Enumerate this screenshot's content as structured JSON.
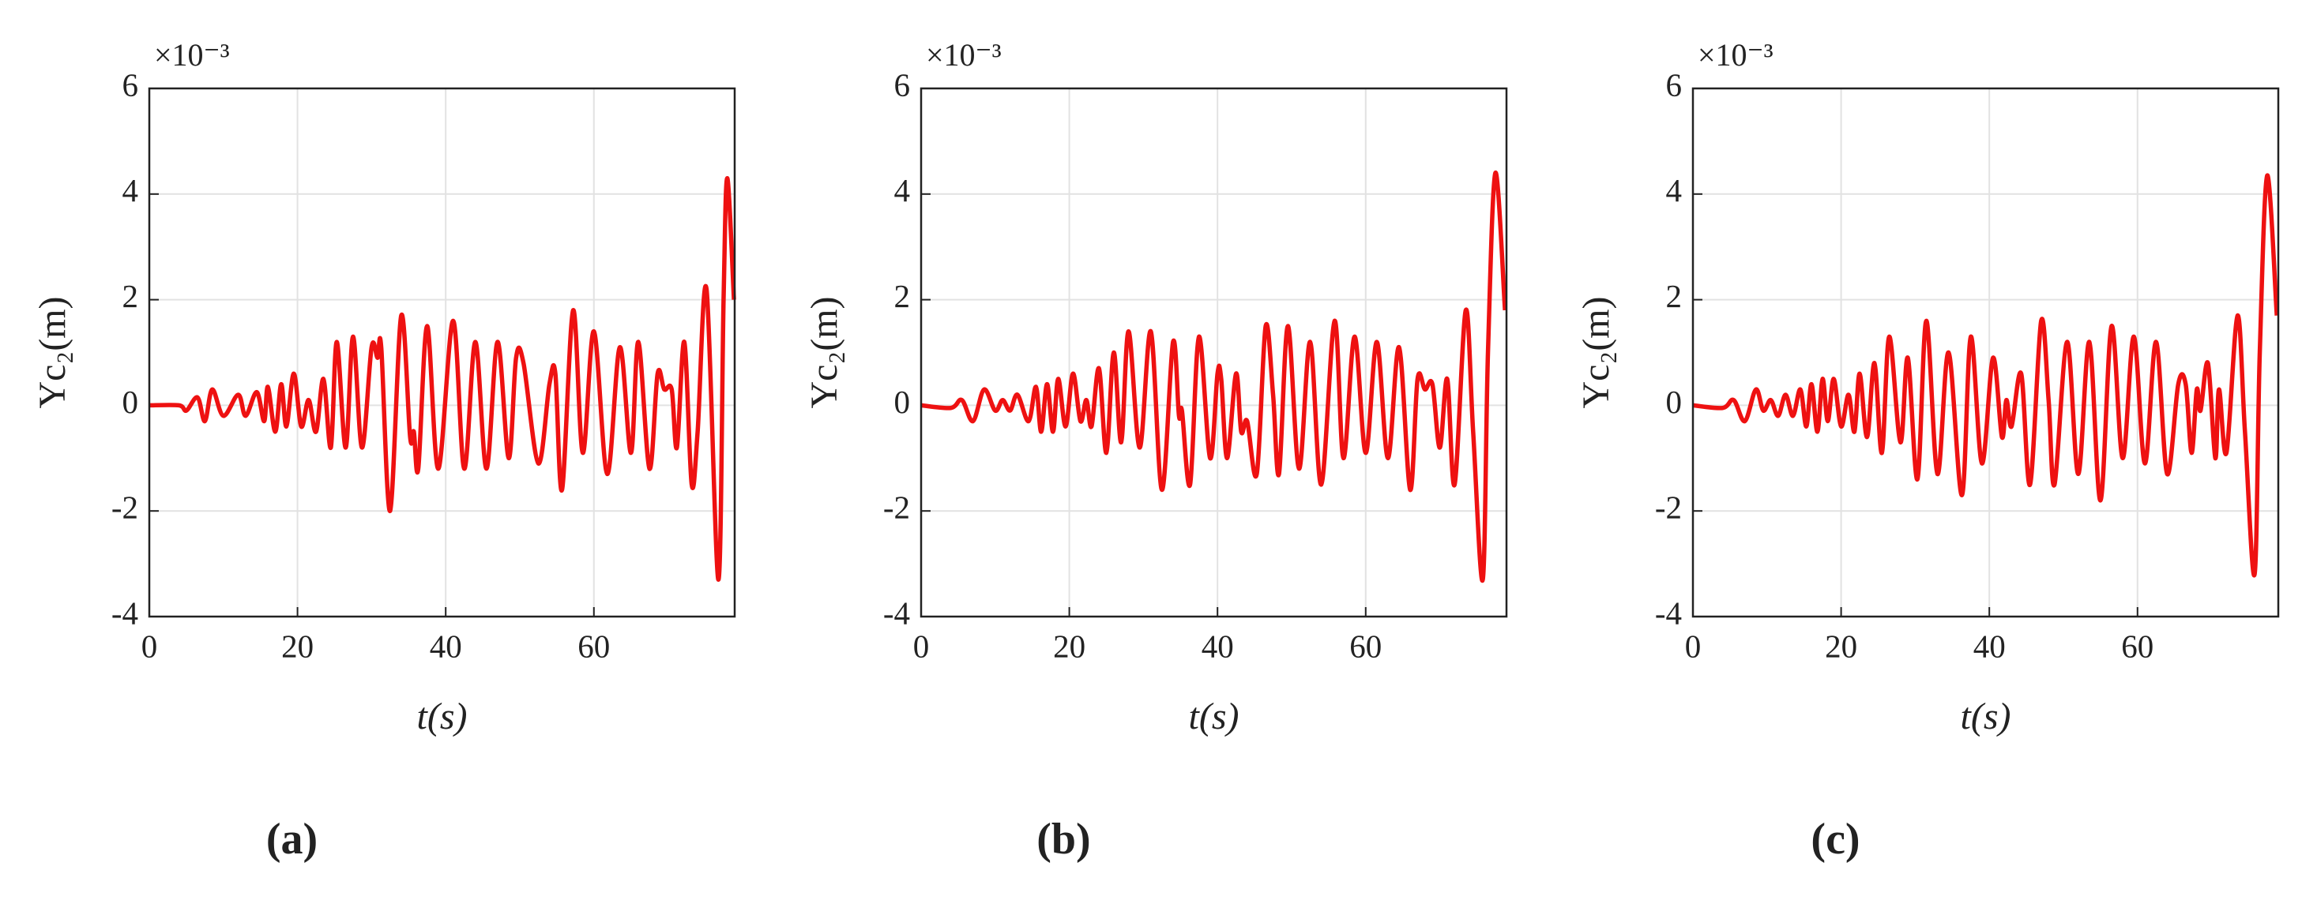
{
  "chart_data": [
    {
      "type": "line",
      "xlabel": "t(s)",
      "ylabel": "Yc₂(m)",
      "exponent_label": "×10⁻³",
      "panel_label": "(a)",
      "xlim": [
        0,
        79
      ],
      "ylim": [
        -4,
        6
      ],
      "xticks": [
        0,
        20,
        40,
        60
      ],
      "yticks": [
        -4,
        -2,
        0,
        2,
        4,
        6
      ],
      "grid": true,
      "color": "#ee1111",
      "x": [
        0,
        4,
        5,
        6.5,
        7.5,
        8.5,
        10,
        12,
        13,
        14.5,
        15.5,
        16,
        17,
        17.8,
        18.5,
        19.5,
        20.5,
        21.5,
        22.5,
        23.5,
        24.5,
        25.3,
        26.5,
        27.5,
        28.7,
        30,
        30.8,
        31.3,
        32.5,
        34,
        35.2,
        35.7,
        36.3,
        37.5,
        39,
        41,
        42.5,
        44,
        45.5,
        47,
        48.5,
        49.5,
        50.5,
        52.5,
        54,
        54.8,
        55.7,
        57.2,
        58.5,
        60,
        61.8,
        63.5,
        65,
        66,
        67.5,
        68.6,
        69.5,
        70.5,
        71.2,
        72.2,
        73.2,
        74,
        75.2,
        76.8,
        77.5,
        78,
        78.9
      ],
      "values": [
        0,
        0,
        -0.1,
        0.15,
        -0.3,
        0.3,
        -0.2,
        0.2,
        -0.2,
        0.25,
        -0.3,
        0.35,
        -0.5,
        0.4,
        -0.4,
        0.6,
        -0.4,
        0.1,
        -0.5,
        0.5,
        -0.8,
        1.2,
        -0.8,
        1.3,
        -0.8,
        1.1,
        0.9,
        1.1,
        -2.0,
        1.7,
        -0.6,
        -0.5,
        -1.2,
        1.5,
        -1.2,
        1.6,
        -1.2,
        1.2,
        -1.2,
        1.2,
        -1.0,
        0.9,
        0.8,
        -1.1,
        0.4,
        0.6,
        -1.6,
        1.8,
        -0.9,
        1.4,
        -1.3,
        1.1,
        -0.9,
        1.2,
        -1.2,
        0.6,
        0.3,
        0.3,
        -0.8,
        1.2,
        -1.5,
        -0.5,
        2.2,
        -3.3,
        2.0,
        4.3,
        2.0
      ]
    },
    {
      "type": "line",
      "xlabel": "t(s)",
      "ylabel": "Yc₂(m)",
      "exponent_label": "×10⁻³",
      "panel_label": "(b)",
      "xlim": [
        0,
        79
      ],
      "ylim": [
        -4,
        6
      ],
      "xticks": [
        0,
        20,
        40,
        60
      ],
      "yticks": [
        -4,
        -2,
        0,
        2,
        4,
        6
      ],
      "grid": true,
      "color": "#ee1111",
      "x": [
        0,
        4,
        5.5,
        7,
        8.5,
        10,
        11,
        12,
        13,
        14.5,
        15.5,
        16.2,
        17,
        17.8,
        18.5,
        19.5,
        20.5,
        21.5,
        22.3,
        23,
        24,
        25,
        26,
        27,
        28,
        29.5,
        31,
        32.5,
        34,
        34.8,
        35.2,
        36.3,
        37.5,
        39,
        40,
        40.5,
        41.3,
        42.5,
        43.2,
        44,
        45.3,
        46.5,
        47.5,
        48.3,
        49.5,
        51,
        52.5,
        54,
        55.8,
        57,
        58.5,
        60,
        61.5,
        63,
        64.5,
        66,
        67,
        68,
        69,
        70,
        71,
        72,
        73.5,
        74.5,
        75.8,
        76.5,
        77.5,
        78.8
      ],
      "values": [
        0,
        -0.05,
        0.1,
        -0.3,
        0.3,
        -0.1,
        0.1,
        -0.1,
        0.2,
        -0.3,
        0.35,
        -0.5,
        0.4,
        -0.5,
        0.5,
        -0.4,
        0.6,
        -0.3,
        0.1,
        -0.4,
        0.7,
        -0.9,
        1.0,
        -0.7,
        1.4,
        -0.8,
        1.4,
        -1.6,
        1.2,
        -0.2,
        -0.1,
        -1.5,
        1.3,
        -1.0,
        0.6,
        0.5,
        -1.0,
        0.6,
        -0.5,
        -0.3,
        -1.3,
        1.5,
        0.2,
        -1.3,
        1.5,
        -1.2,
        1.2,
        -1.5,
        1.6,
        -1.0,
        1.3,
        -0.9,
        1.2,
        -1.0,
        1.1,
        -1.6,
        0.5,
        0.3,
        0.4,
        -0.8,
        0.5,
        -1.5,
        1.8,
        -0.5,
        -3.3,
        1.0,
        4.4,
        1.8
      ]
    },
    {
      "type": "line",
      "xlabel": "t(s)",
      "ylabel": "Yc₂(m)",
      "exponent_label": "×10⁻³",
      "panel_label": "(c)",
      "xlim": [
        0,
        79
      ],
      "ylim": [
        -4,
        6
      ],
      "xticks": [
        0,
        20,
        40,
        60
      ],
      "yticks": [
        -4,
        -2,
        0,
        2,
        4,
        6
      ],
      "grid": true,
      "color": "#ee1111",
      "x": [
        0,
        4,
        5.5,
        7,
        8.5,
        9.5,
        10.5,
        11.5,
        12.5,
        13.5,
        14.5,
        15.3,
        16,
        16.8,
        17.5,
        18.2,
        19,
        20,
        21,
        21.8,
        22.5,
        23.5,
        24.5,
        25.5,
        26.5,
        28,
        29,
        30.3,
        31.5,
        33,
        34.5,
        36.3,
        37.5,
        39,
        40.5,
        41.7,
        42.3,
        43,
        44.3,
        45.5,
        47,
        48,
        48.8,
        50.5,
        52,
        53.5,
        55,
        56.5,
        58,
        59.5,
        61,
        62.5,
        64,
        65.5,
        66.5,
        67.3,
        68,
        68.5,
        69.5,
        70.5,
        71,
        72,
        73.5,
        74.5,
        75.8,
        76.5,
        77.5,
        78.8
      ],
      "values": [
        0,
        -0.05,
        0.1,
        -0.3,
        0.3,
        -0.1,
        0.1,
        -0.2,
        0.2,
        -0.2,
        0.3,
        -0.4,
        0.4,
        -0.5,
        0.5,
        -0.3,
        0.5,
        -0.4,
        0.2,
        -0.5,
        0.6,
        -0.6,
        0.8,
        -0.9,
        1.3,
        -0.7,
        0.9,
        -1.4,
        1.6,
        -1.3,
        1.0,
        -1.7,
        1.3,
        -1.1,
        0.9,
        -0.6,
        0.1,
        -0.4,
        0.6,
        -1.5,
        1.6,
        0.1,
        -1.5,
        1.2,
        -1.3,
        1.2,
        -1.8,
        1.5,
        -1.0,
        1.3,
        -1.1,
        1.2,
        -1.3,
        0.4,
        0.4,
        -0.9,
        0.3,
        -0.1,
        0.8,
        -1.0,
        0.3,
        -0.9,
        1.7,
        -0.5,
        -3.2,
        1.0,
        4.35,
        1.7
      ]
    }
  ]
}
